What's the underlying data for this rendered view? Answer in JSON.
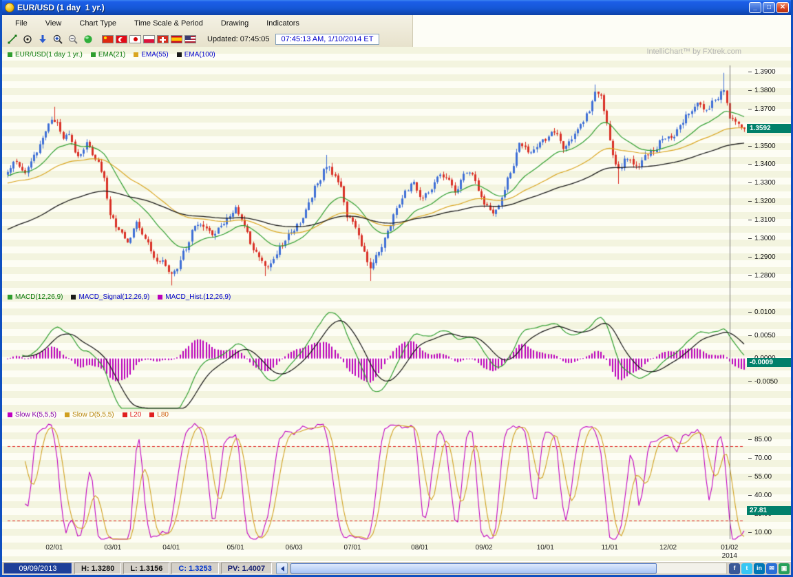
{
  "window": {
    "title": "EUR/USD (1 day  1 yr.)",
    "controls": {
      "minimize": "_",
      "maximize": "□",
      "close": "✕"
    }
  },
  "menubar": {
    "items": [
      "File",
      "View",
      "Chart Type",
      "Time Scale & Period",
      "Drawing",
      "Indicators"
    ]
  },
  "toolbar": {
    "tools": [
      "trendline-tool-icon",
      "circle-dot-tool-icon",
      "down-arrow-icon",
      "zoom-in-icon",
      "zoom-out-icon",
      "refresh-sphere-icon"
    ],
    "flags": [
      "flag-china",
      "flag-turkey",
      "flag-japan",
      "flag-poland",
      "flag-switzerland",
      "flag-spain",
      "flag-usa"
    ],
    "updated_label": "Updated: 07:45:05",
    "timestamp": "07:45:13 AM, 1/10/2014 ET"
  },
  "chart": {
    "watermark": "IntelliChart™ by FXtrek.com",
    "legends": {
      "main": [
        {
          "label": "EUR/USD(1 day  1 yr.)",
          "swatch": "#2f9e2f",
          "color": "#087808"
        },
        {
          "label": "EMA(21)",
          "swatch": "#2f9e2f",
          "color": "#087808"
        },
        {
          "label": "EMA(55)",
          "swatch": "#d9a520",
          "color": "#0000cc"
        },
        {
          "label": "EMA(100)",
          "swatch": "#1a1a1a",
          "color": "#0000cc"
        }
      ],
      "macd": [
        {
          "label": "MACD(12,26,9)",
          "swatch": "#2f9e2f",
          "color": "#087808"
        },
        {
          "label": "MACD_Signal(12,26,9)",
          "swatch": "#1a1a1a",
          "color": "#0000cc"
        },
        {
          "label": "MACD_Hist.(12,26,9)",
          "swatch": "#bb00bb",
          "color": "#0000cc"
        }
      ],
      "stoch": [
        {
          "label": "Slow K(5,5,5)",
          "swatch": "#c000c0",
          "color": "#8800aa"
        },
        {
          "label": "Slow D(5,5,5)",
          "swatch": "#d0a020",
          "color": "#b8860b"
        },
        {
          "label": "L20",
          "swatch": "#e02020",
          "color": "#e02020"
        },
        {
          "label": "L80",
          "swatch": "#e02020",
          "color": "#d06010"
        }
      ]
    },
    "axes": {
      "price": {
        "ticks": [
          "1.3900",
          "1.3800",
          "1.3700",
          "1.3600",
          "1.3500",
          "1.3400",
          "1.3300",
          "1.3200",
          "1.3100",
          "1.3000",
          "1.2900",
          "1.2800"
        ],
        "badge": "1.3592"
      },
      "macd": {
        "ticks": [
          "0.0100",
          "0.0050",
          "0.0000",
          "-0.0050"
        ],
        "badge": "-0.0009"
      },
      "stoch": {
        "ticks": [
          "85.00",
          "70.00",
          "55.00",
          "40.00",
          "25.00",
          "10.00"
        ],
        "badge": "27.81"
      }
    },
    "x_axis": [
      {
        "label": "02/01",
        "index": 16
      },
      {
        "label": "03/01",
        "index": 36
      },
      {
        "label": "04/01",
        "index": 56
      },
      {
        "label": "05/01",
        "index": 78
      },
      {
        "label": "06/03",
        "index": 98
      },
      {
        "label": "07/01",
        "index": 118
      },
      {
        "label": "08/01",
        "index": 141
      },
      {
        "label": "09/02",
        "index": 163
      },
      {
        "label": "10/01",
        "index": 184
      },
      {
        "label": "11/01",
        "index": 206
      },
      {
        "label": "12/02",
        "index": 226
      },
      {
        "label": "01/02",
        "index": 247,
        "sub": "2014"
      }
    ]
  },
  "chart_data": {
    "type": "candlestick+indicators",
    "symbol": "EUR/USD",
    "interval": "1 day",
    "range": "1 yr.",
    "points": 253,
    "seed": 20140110,
    "price_range": [
      1.272,
      1.3935
    ],
    "macd_range": [
      -0.0108,
      0.0113
    ],
    "stoch_range": [
      5,
      98
    ],
    "last_close": 1.3592,
    "crosshair_index": 247,
    "overlays": {
      "ema_periods": [
        21,
        55,
        100
      ],
      "seed_offsets": [
        -0.002,
        -0.006,
        -0.031
      ]
    },
    "macd_params": [
      12,
      26,
      9
    ],
    "stoch_params": [
      5,
      5,
      5
    ],
    "stoch_levels": [
      20,
      80
    ],
    "anchors": [
      [
        0,
        1.336
      ],
      [
        3,
        1.342
      ],
      [
        6,
        1.3365
      ],
      [
        9,
        1.3445
      ],
      [
        12,
        1.353
      ],
      [
        15,
        1.3655
      ],
      [
        17,
        1.364
      ],
      [
        19,
        1.355
      ],
      [
        21,
        1.3575
      ],
      [
        24,
        1.345
      ],
      [
        27,
        1.3515
      ],
      [
        30,
        1.344
      ],
      [
        33,
        1.334
      ],
      [
        35,
        1.313
      ],
      [
        38,
        1.304
      ],
      [
        41,
        1.2985
      ],
      [
        44,
        1.3075
      ],
      [
        47,
        1.3
      ],
      [
        50,
        1.2905
      ],
      [
        53,
        1.287
      ],
      [
        56,
        1.28
      ],
      [
        58,
        1.2845
      ],
      [
        61,
        1.295
      ],
      [
        64,
        1.3085
      ],
      [
        67,
        1.3055
      ],
      [
        70,
        1.3015
      ],
      [
        73,
        1.306
      ],
      [
        76,
        1.3115
      ],
      [
        78,
        1.3165
      ],
      [
        81,
        1.307
      ],
      [
        84,
        1.296
      ],
      [
        88,
        1.2855
      ],
      [
        91,
        1.2885
      ],
      [
        94,
        1.296
      ],
      [
        97,
        1.303
      ],
      [
        100,
        1.309
      ],
      [
        103,
        1.32
      ],
      [
        106,
        1.331
      ],
      [
        109,
        1.3395
      ],
      [
        112,
        1.334
      ],
      [
        114,
        1.329
      ],
      [
        116,
        1.313
      ],
      [
        119,
        1.3055
      ],
      [
        122,
        1.292
      ],
      [
        124,
        1.2835
      ],
      [
        127,
        1.294
      ],
      [
        130,
        1.3055
      ],
      [
        133,
        1.316
      ],
      [
        136,
        1.3255
      ],
      [
        139,
        1.33
      ],
      [
        141,
        1.3215
      ],
      [
        144,
        1.3265
      ],
      [
        147,
        1.3345
      ],
      [
        150,
        1.332
      ],
      [
        153,
        1.3255
      ],
      [
        156,
        1.335
      ],
      [
        159,
        1.3335
      ],
      [
        161,
        1.3255
      ],
      [
        163,
        1.3195
      ],
      [
        166,
        1.3115
      ],
      [
        169,
        1.321
      ],
      [
        172,
        1.3355
      ],
      [
        175,
        1.3525
      ],
      [
        178,
        1.3475
      ],
      [
        181,
        1.35
      ],
      [
        184,
        1.3535
      ],
      [
        187,
        1.3585
      ],
      [
        190,
        1.3485
      ],
      [
        193,
        1.3545
      ],
      [
        196,
        1.361
      ],
      [
        199,
        1.37
      ],
      [
        201,
        1.3785
      ],
      [
        203,
        1.376
      ],
      [
        205,
        1.362
      ],
      [
        207,
        1.3455
      ],
      [
        209,
        1.337
      ],
      [
        212,
        1.3435
      ],
      [
        215,
        1.3375
      ],
      [
        218,
        1.3445
      ],
      [
        221,
        1.3485
      ],
      [
        224,
        1.3545
      ],
      [
        227,
        1.3545
      ],
      [
        230,
        1.3605
      ],
      [
        233,
        1.3685
      ],
      [
        236,
        1.3725
      ],
      [
        239,
        1.3695
      ],
      [
        242,
        1.3765
      ],
      [
        245,
        1.3805
      ],
      [
        247,
        1.366
      ],
      [
        249,
        1.3635
      ],
      [
        251,
        1.358
      ],
      [
        252,
        1.3592
      ]
    ],
    "wick_highs": [
      [
        16,
        1.3712
      ],
      [
        109,
        1.3452
      ],
      [
        201,
        1.3832
      ],
      [
        245,
        1.3895
      ]
    ],
    "wick_lows": [
      [
        56,
        1.2748
      ],
      [
        88,
        1.2798
      ],
      [
        124,
        1.2772
      ],
      [
        209,
        1.3296
      ]
    ],
    "colors": {
      "up": "#3f6fd6",
      "down": "#d93026",
      "ema21": "#2f9e2f",
      "ema55": "#d9a520",
      "ema100": "#1a1a1a",
      "macd": "#2f9e2f",
      "signal": "#101010",
      "hist": "#bb00bb",
      "k": "#c000c0",
      "d": "#d0a020",
      "levels": "#e02020",
      "badge": "#00806a",
      "crosshair": "#787878"
    }
  },
  "statusbar": {
    "date": "09/09/2013",
    "high": "H: 1.3280",
    "low": "L: 1.3156",
    "close": "C: 1.3253",
    "pv": "PV: 1.4007",
    "social": [
      {
        "name": "facebook-icon",
        "glyph": "f",
        "color": "#3b5998"
      },
      {
        "name": "twitter-icon",
        "glyph": "t",
        "color": "#36c7f4"
      },
      {
        "name": "linkedin-icon",
        "glyph": "in",
        "color": "#0077b5"
      },
      {
        "name": "mail-icon",
        "glyph": "✉",
        "color": "#2a6fd6"
      },
      {
        "name": "share-icon",
        "glyph": "▣",
        "color": "#27a05c"
      }
    ]
  }
}
